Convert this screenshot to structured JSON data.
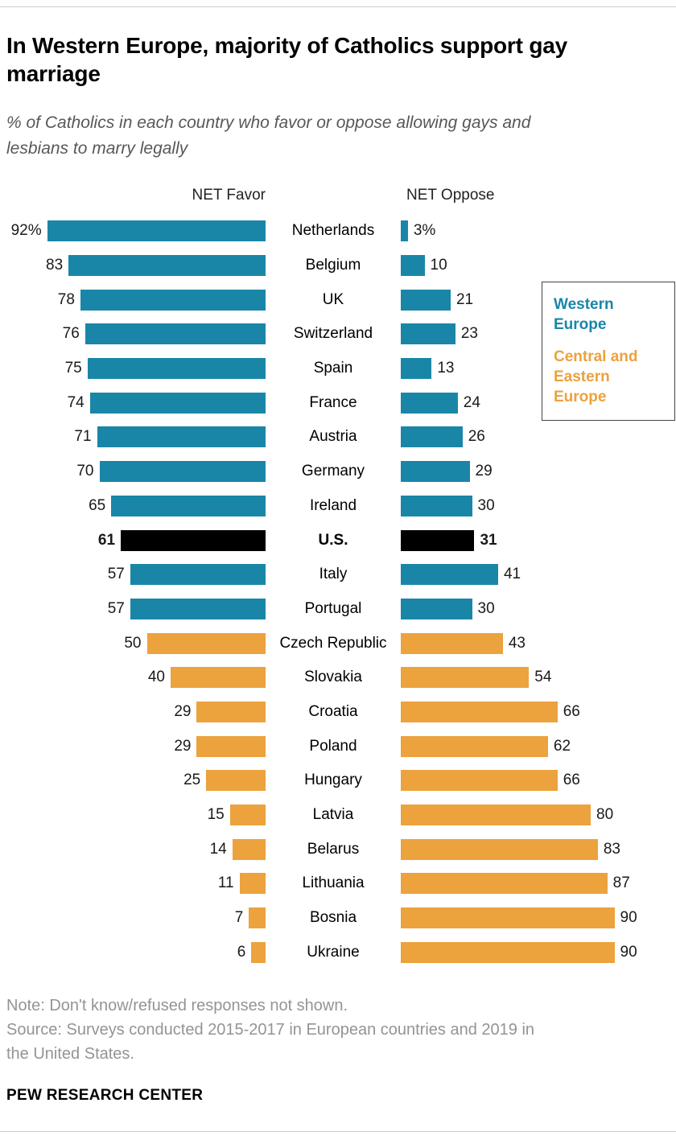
{
  "header": {
    "title": "In Western Europe, majority of Catholics support gay marriage",
    "subtitle": "% of Catholics in each country who favor or oppose allowing gays and lesbians to marry legally"
  },
  "chart_data": {
    "type": "bar",
    "orientation": "diverging-horizontal",
    "left_header": "NET Favor",
    "right_header": "NET Oppose",
    "xlim": [
      0,
      100
    ],
    "grid": false,
    "legend_position": "right",
    "colors": {
      "western": "#1986a8",
      "central_eastern": "#eca23d",
      "us": "#000000"
    },
    "rows": [
      {
        "country": "Netherlands",
        "favor": 92,
        "oppose": 3,
        "favor_label": "92%",
        "oppose_label": "3%",
        "group": "western"
      },
      {
        "country": "Belgium",
        "favor": 83,
        "oppose": 10,
        "favor_label": "83",
        "oppose_label": "10",
        "group": "western"
      },
      {
        "country": "UK",
        "favor": 78,
        "oppose": 21,
        "favor_label": "78",
        "oppose_label": "21",
        "group": "western"
      },
      {
        "country": "Switzerland",
        "favor": 76,
        "oppose": 23,
        "favor_label": "76",
        "oppose_label": "23",
        "group": "western"
      },
      {
        "country": "Spain",
        "favor": 75,
        "oppose": 13,
        "favor_label": "75",
        "oppose_label": "13",
        "group": "western"
      },
      {
        "country": "France",
        "favor": 74,
        "oppose": 24,
        "favor_label": "74",
        "oppose_label": "24",
        "group": "western"
      },
      {
        "country": "Austria",
        "favor": 71,
        "oppose": 26,
        "favor_label": "71",
        "oppose_label": "26",
        "group": "western"
      },
      {
        "country": "Germany",
        "favor": 70,
        "oppose": 29,
        "favor_label": "70",
        "oppose_label": "29",
        "group": "western"
      },
      {
        "country": "Ireland",
        "favor": 65,
        "oppose": 30,
        "favor_label": "65",
        "oppose_label": "30",
        "group": "western"
      },
      {
        "country": "U.S.",
        "favor": 61,
        "oppose": 31,
        "favor_label": "61",
        "oppose_label": "31",
        "group": "us"
      },
      {
        "country": "Italy",
        "favor": 57,
        "oppose": 41,
        "favor_label": "57",
        "oppose_label": "41",
        "group": "western"
      },
      {
        "country": "Portugal",
        "favor": 57,
        "oppose": 30,
        "favor_label": "57",
        "oppose_label": "30",
        "group": "western"
      },
      {
        "country": "Czech Republic",
        "favor": 50,
        "oppose": 43,
        "favor_label": "50",
        "oppose_label": "43",
        "group": "central_eastern"
      },
      {
        "country": "Slovakia",
        "favor": 40,
        "oppose": 54,
        "favor_label": "40",
        "oppose_label": "54",
        "group": "central_eastern"
      },
      {
        "country": "Croatia",
        "favor": 29,
        "oppose": 66,
        "favor_label": "29",
        "oppose_label": "66",
        "group": "central_eastern"
      },
      {
        "country": "Poland",
        "favor": 29,
        "oppose": 62,
        "favor_label": "29",
        "oppose_label": "62",
        "group": "central_eastern"
      },
      {
        "country": "Hungary",
        "favor": 25,
        "oppose": 66,
        "favor_label": "25",
        "oppose_label": "66",
        "group": "central_eastern"
      },
      {
        "country": "Latvia",
        "favor": 15,
        "oppose": 80,
        "favor_label": "15",
        "oppose_label": "80",
        "group": "central_eastern"
      },
      {
        "country": "Belarus",
        "favor": 14,
        "oppose": 83,
        "favor_label": "14",
        "oppose_label": "83",
        "group": "central_eastern"
      },
      {
        "country": "Lithuania",
        "favor": 11,
        "oppose": 87,
        "favor_label": "11",
        "oppose_label": "87",
        "group": "central_eastern"
      },
      {
        "country": "Bosnia",
        "favor": 7,
        "oppose": 90,
        "favor_label": "7",
        "oppose_label": "90",
        "group": "central_eastern"
      },
      {
        "country": "Ukraine",
        "favor": 6,
        "oppose": 90,
        "favor_label": "6",
        "oppose_label": "90",
        "group": "central_eastern"
      }
    ]
  },
  "legend": {
    "items": [
      {
        "label": "Western Europe",
        "color": "#1986a8"
      },
      {
        "label": "Central and Eastern Europe",
        "color": "#eca23d"
      }
    ]
  },
  "footer": {
    "note": "Note: Don't know/refused responses not shown.",
    "source": "Source: Surveys conducted 2015-2017 in European countries and 2019 in the United States.",
    "brand": "PEW RESEARCH CENTER"
  }
}
